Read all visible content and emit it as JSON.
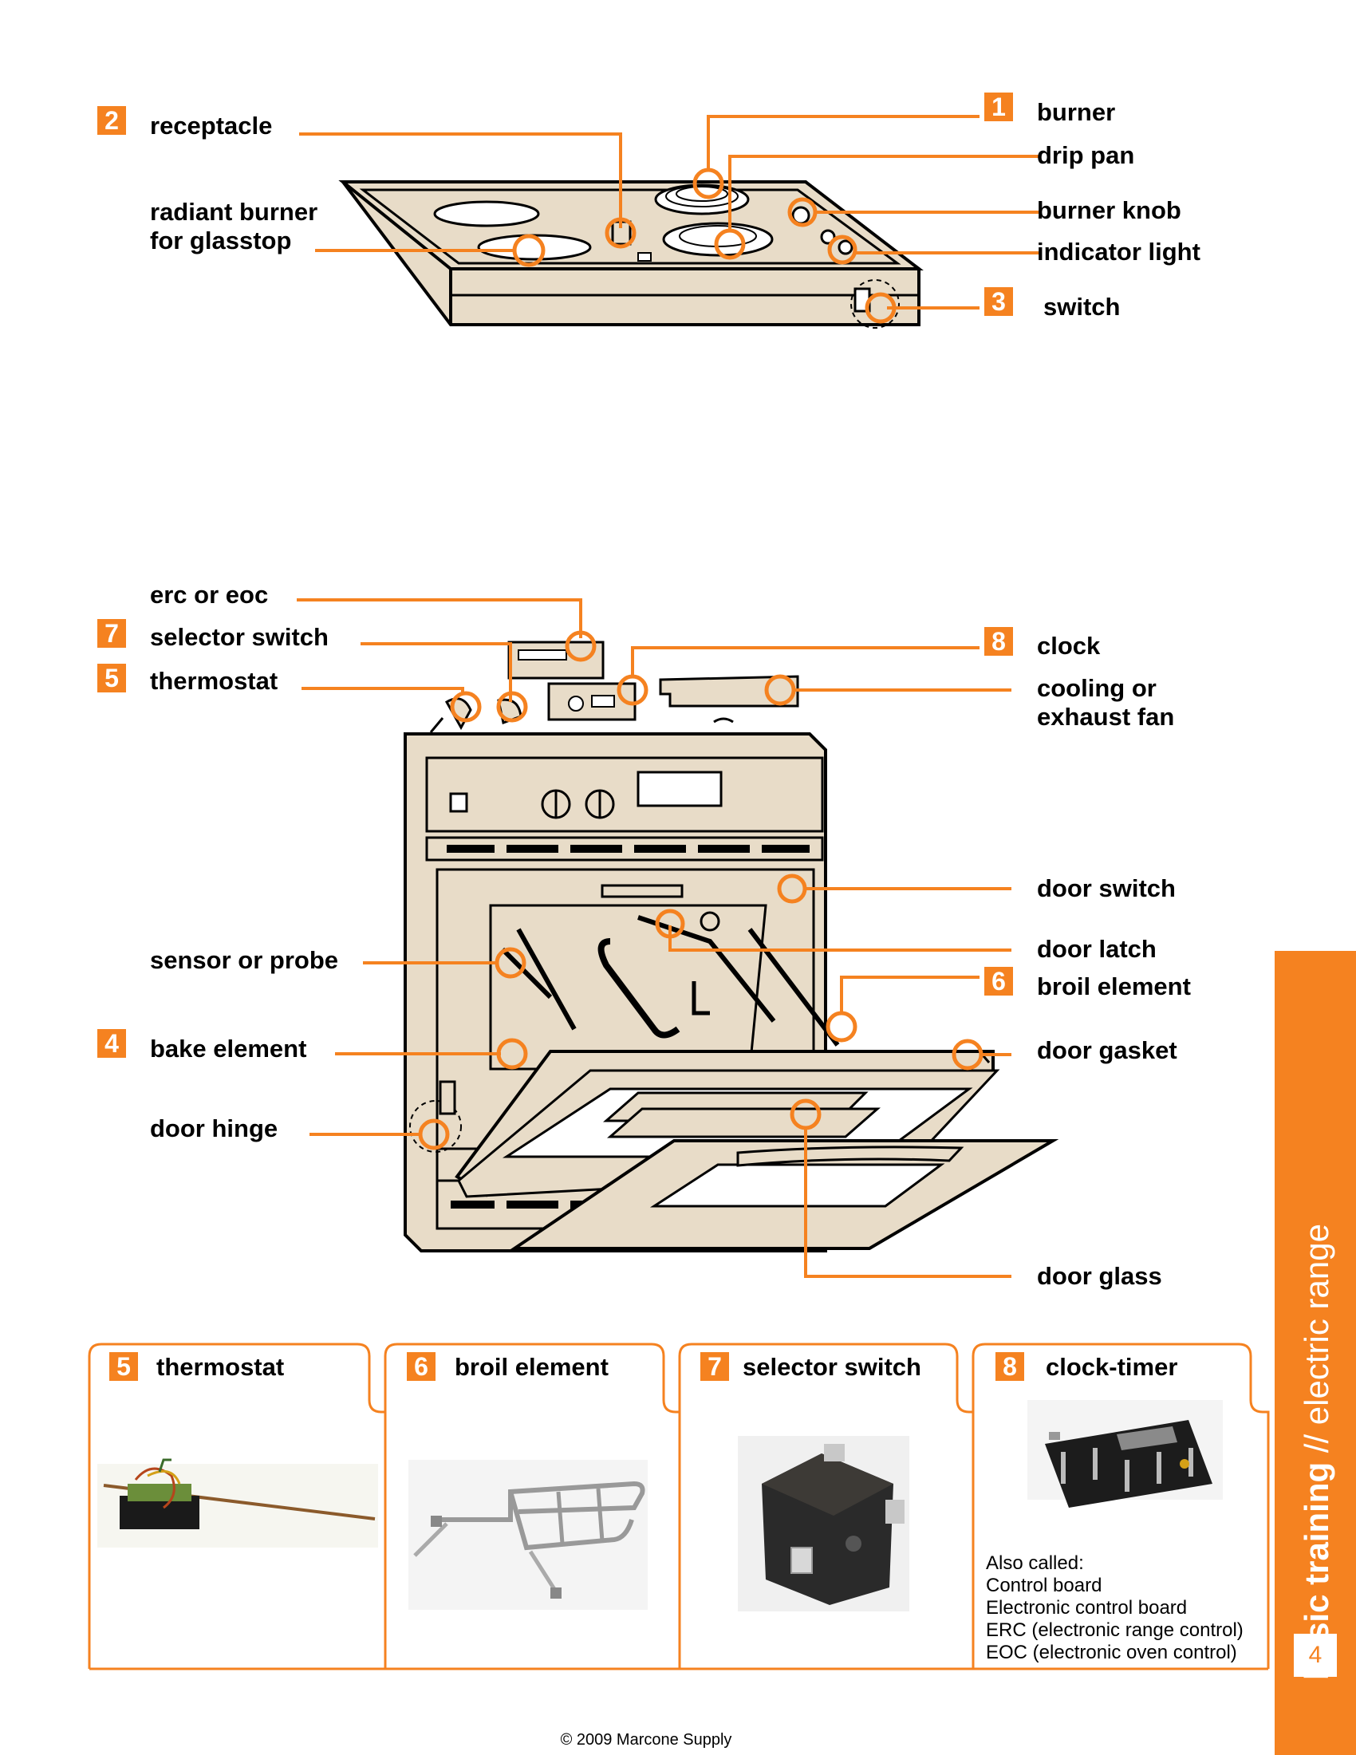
{
  "colors": {
    "accent": "#f58220",
    "appliance": "#e8dcc8",
    "outline": "#000000",
    "background": "#ffffff"
  },
  "cooktop": {
    "labels": {
      "receptacle": "receptacle",
      "radiant_line1": "radiant burner",
      "radiant_line2": "for glasstop",
      "burner": "burner",
      "drip_pan": "drip pan",
      "burner_knob": "burner knob",
      "indicator_light": "indicator light",
      "switch": "switch"
    },
    "badges": {
      "receptacle": "2",
      "burner": "1",
      "switch": "3"
    }
  },
  "oven": {
    "labels": {
      "erc": "erc or eoc",
      "selector_switch": "selector switch",
      "thermostat": "thermostat",
      "clock": "clock",
      "fan_line1": "cooling or",
      "fan_line2": "exhaust fan",
      "door_switch": "door switch",
      "door_latch": "door latch",
      "broil_element": "broil element",
      "door_gasket": "door gasket",
      "sensor": "sensor or probe",
      "bake_element": "bake element",
      "door_hinge": "door hinge",
      "door_glass": "door glass"
    },
    "badges": {
      "selector_switch": "7",
      "thermostat": "5",
      "clock": "8",
      "broil_element": "6",
      "bake_element": "4"
    }
  },
  "parts": [
    {
      "badge": "5",
      "title": "thermostat",
      "icon": "thermostat-photo"
    },
    {
      "badge": "6",
      "title": "broil element",
      "icon": "broil-element-photo"
    },
    {
      "badge": "7",
      "title": "selector switch",
      "icon": "selector-switch-photo"
    },
    {
      "badge": "8",
      "title": "clock-timer",
      "icon": "clock-timer-photo"
    }
  ],
  "clock_note": {
    "line1": "Also called:",
    "line2": "Control board",
    "line3": "Electronic control board",
    "line4": "ERC (electronic range control)",
    "line5": "EOC (electronic oven control)"
  },
  "sidebar": {
    "bold": "basic training",
    "rest": " // electric range",
    "page": "4"
  },
  "footer": "© 2009 Marcone Supply"
}
